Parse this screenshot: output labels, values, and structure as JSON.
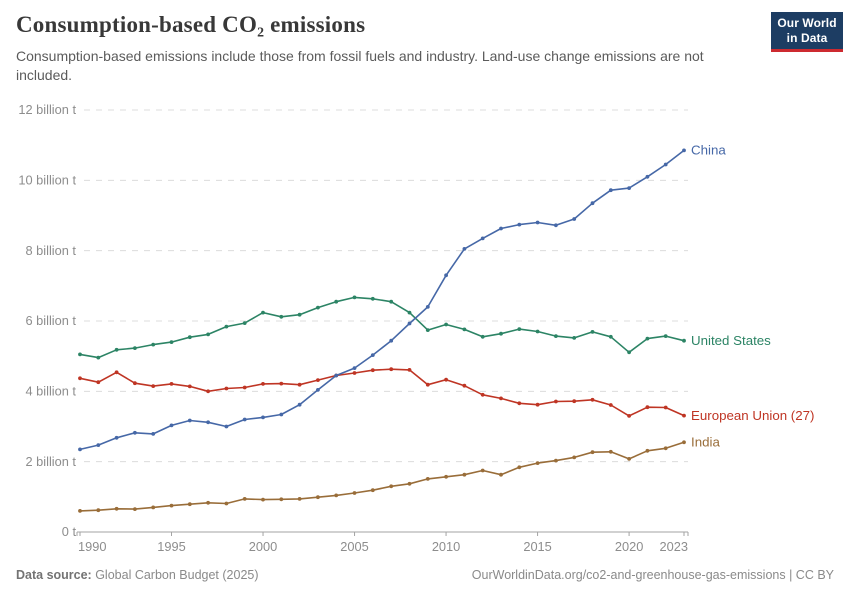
{
  "header": {
    "title": "Consumption-based CO₂ emissions",
    "subtitle": "Consumption-based emissions include those from fossil fuels and industry. Land-use change emissions are not included.",
    "logo": {
      "line1": "Our World",
      "line2": "in Data"
    }
  },
  "chart_data": {
    "type": "line",
    "title": "Consumption-based CO₂ emissions",
    "unit": "billion t",
    "grid": "horizontal-dashed",
    "legend_position": "right-end-labels",
    "xlim": [
      1990,
      2023
    ],
    "ylim": [
      0,
      12
    ],
    "xticks": [
      1990,
      1995,
      2000,
      2005,
      2010,
      2015,
      2020,
      2023
    ],
    "yticks": [
      {
        "value": 0,
        "label": "0 t"
      },
      {
        "value": 2,
        "label": "2 billion t"
      },
      {
        "value": 4,
        "label": "4 billion t"
      },
      {
        "value": 6,
        "label": "6 billion t"
      },
      {
        "value": 8,
        "label": "8 billion t"
      },
      {
        "value": 10,
        "label": "10 billion t"
      },
      {
        "value": 12,
        "label": "12 billion t"
      }
    ],
    "x": [
      1990,
      1991,
      1992,
      1993,
      1994,
      1995,
      1996,
      1997,
      1998,
      1999,
      2000,
      2001,
      2002,
      2003,
      2004,
      2005,
      2006,
      2007,
      2008,
      2009,
      2010,
      2011,
      2012,
      2013,
      2014,
      2015,
      2016,
      2017,
      2018,
      2019,
      2020,
      2021,
      2022,
      2023
    ],
    "series": [
      {
        "name": "European Union (27)",
        "color": "#bf3524",
        "values": [
          4.37,
          4.26,
          4.54,
          4.23,
          4.15,
          4.21,
          4.14,
          4.0,
          4.08,
          4.11,
          4.21,
          4.22,
          4.19,
          4.32,
          4.45,
          4.52,
          4.6,
          4.63,
          4.61,
          4.19,
          4.33,
          4.16,
          3.9,
          3.8,
          3.66,
          3.62,
          3.71,
          3.72,
          3.76,
          3.61,
          3.3,
          3.55,
          3.54,
          3.31
        ]
      },
      {
        "name": "United States",
        "color": "#2c8465",
        "values": [
          5.05,
          4.96,
          5.18,
          5.23,
          5.33,
          5.4,
          5.54,
          5.62,
          5.84,
          5.94,
          6.24,
          6.12,
          6.18,
          6.38,
          6.55,
          6.67,
          6.63,
          6.55,
          6.24,
          5.74,
          5.9,
          5.76,
          5.55,
          5.64,
          5.77,
          5.7,
          5.57,
          5.52,
          5.69,
          5.55,
          5.11,
          5.5,
          5.57,
          5.44
        ]
      },
      {
        "name": "India",
        "color": "#996d39",
        "values": [
          0.6,
          0.62,
          0.66,
          0.65,
          0.7,
          0.75,
          0.79,
          0.83,
          0.81,
          0.94,
          0.92,
          0.93,
          0.94,
          0.99,
          1.04,
          1.11,
          1.19,
          1.3,
          1.37,
          1.51,
          1.57,
          1.63,
          1.75,
          1.63,
          1.84,
          1.96,
          2.03,
          2.12,
          2.27,
          2.28,
          2.08,
          2.31,
          2.38,
          2.55
        ]
      },
      {
        "name": "China",
        "color": "#4668a7",
        "values": [
          2.35,
          2.47,
          2.68,
          2.82,
          2.79,
          3.03,
          3.17,
          3.12,
          3.0,
          3.2,
          3.26,
          3.34,
          3.62,
          4.04,
          4.45,
          4.66,
          5.03,
          5.44,
          5.93,
          6.4,
          7.3,
          8.05,
          8.35,
          8.63,
          8.74,
          8.8,
          8.72,
          8.9,
          9.35,
          9.72,
          9.78,
          10.1,
          10.45,
          10.85
        ]
      }
    ]
  },
  "footer": {
    "datasource_label": "Data source:",
    "datasource_value": " Global Carbon Budget (2025)",
    "credit": "OurWorldinData.org/co2-and-greenhouse-gas-emissions | CC BY"
  }
}
